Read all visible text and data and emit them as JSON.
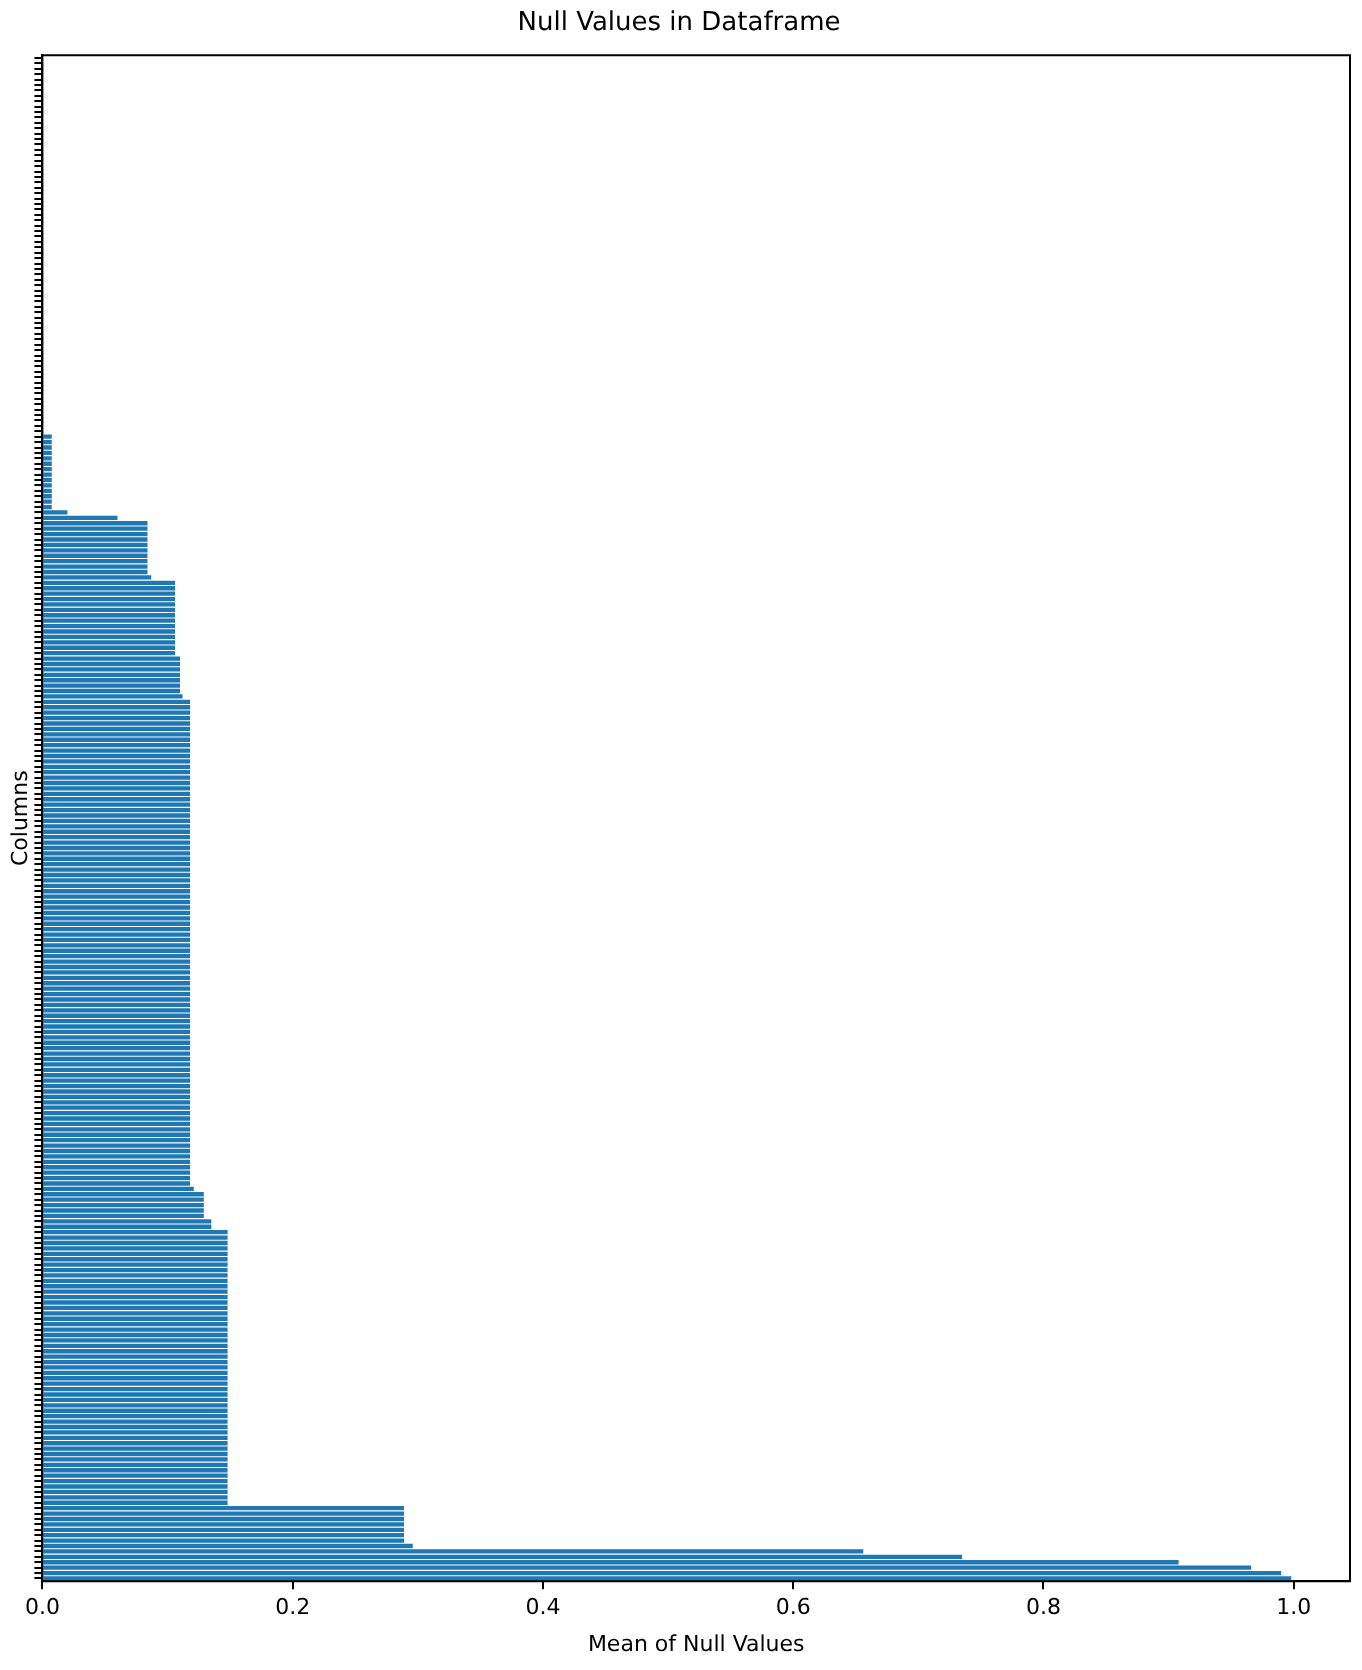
{
  "chart_data": {
    "type": "bar",
    "orientation": "horizontal",
    "title": "Null Values in Dataframe",
    "xlabel": "Mean of Null Values",
    "ylabel": "Columns",
    "categories": [
      null,
      null,
      null,
      null,
      null,
      null,
      null,
      null,
      null,
      null,
      null,
      null,
      null,
      null,
      null,
      null,
      null,
      null,
      null,
      null,
      null,
      null,
      null,
      null,
      null,
      null,
      null,
      null,
      null,
      null,
      null,
      null,
      null,
      null,
      null,
      null,
      null,
      null,
      null,
      null,
      null,
      null,
      null,
      null,
      null,
      null,
      null,
      null,
      null,
      null,
      null,
      null,
      null,
      null,
      null,
      null,
      null,
      null,
      null,
      null,
      null,
      null,
      null,
      null,
      null,
      null,
      null,
      null,
      null,
      null,
      null,
      null,
      null,
      null,
      null,
      null,
      null,
      null,
      null,
      null,
      null,
      null,
      null,
      null,
      null,
      null,
      null,
      null,
      null,
      null,
      null,
      null,
      null,
      null,
      null,
      null,
      null,
      null,
      null,
      null,
      null,
      null,
      null,
      null,
      null,
      null,
      null,
      null,
      null,
      null,
      null,
      null,
      null,
      null,
      null,
      null,
      null,
      null,
      null,
      null,
      null,
      null,
      null,
      null,
      null,
      null,
      null,
      null,
      null,
      null,
      null,
      null,
      null,
      null,
      null,
      null,
      null,
      null,
      null,
      null,
      null,
      null,
      null,
      null,
      null,
      null,
      null,
      null,
      null,
      null,
      null,
      null,
      null,
      null,
      null,
      null,
      null,
      null,
      null,
      null,
      null,
      null,
      null,
      null,
      null,
      null,
      null,
      null,
      null,
      null,
      null,
      null,
      null,
      null,
      null,
      null,
      null,
      null,
      null,
      null,
      null,
      null,
      null,
      null,
      null,
      null,
      null,
      null,
      null,
      null,
      null,
      null,
      null,
      null,
      null,
      null,
      null,
      null,
      null,
      null,
      null,
      null,
      null,
      null,
      null,
      null,
      null,
      null,
      null,
      null,
      null,
      null,
      null,
      null,
      null,
      null,
      null,
      null,
      null,
      null,
      null,
      null,
      null,
      null,
      null,
      null,
      null,
      null,
      null,
      null,
      null,
      null,
      null,
      null,
      null,
      null,
      null,
      null,
      null,
      null,
      null,
      null,
      null,
      null,
      null,
      null,
      null,
      null,
      null,
      null,
      null,
      null,
      null,
      null,
      null,
      null,
      null,
      null,
      null,
      null,
      null,
      null,
      null,
      null,
      null,
      null,
      null,
      null,
      null,
      null,
      null,
      null,
      null,
      null,
      null,
      null,
      null,
      null,
      null,
      null,
      null,
      null
    ],
    "values": [
      0,
      0,
      0,
      0,
      0,
      0,
      0,
      0,
      0,
      0,
      0,
      0,
      0,
      0,
      0,
      0,
      0,
      0,
      0,
      0,
      0,
      0,
      0,
      0,
      0,
      0,
      0,
      0,
      0,
      0,
      0,
      0,
      0,
      0,
      0,
      0,
      0,
      0,
      0,
      0,
      0,
      0,
      0,
      0,
      0,
      0,
      0,
      0,
      0,
      0,
      0,
      0,
      0,
      0,
      0,
      0,
      0,
      0,
      0,
      0,
      0,
      0,
      0,
      0,
      0,
      0,
      0,
      0,
      0,
      0,
      0.0075,
      0.0075,
      0.0075,
      0.0075,
      0.0075,
      0.0075,
      0.0075,
      0.0075,
      0.0075,
      0.0075,
      0.0075,
      0.0075,
      0.0075,
      0.0075,
      0.02,
      0.06,
      0.084,
      0.084,
      0.084,
      0.084,
      0.084,
      0.084,
      0.084,
      0.084,
      0.084,
      0.084,
      0.087,
      0.106,
      0.106,
      0.106,
      0.106,
      0.106,
      0.106,
      0.106,
      0.106,
      0.106,
      0.106,
      0.106,
      0.106,
      0.106,
      0.106,
      0.11,
      0.11,
      0.11,
      0.11,
      0.11,
      0.11,
      0.11,
      0.112,
      0.118,
      0.118,
      0.118,
      0.118,
      0.118,
      0.118,
      0.118,
      0.118,
      0.118,
      0.118,
      0.118,
      0.118,
      0.118,
      0.118,
      0.118,
      0.118,
      0.118,
      0.118,
      0.118,
      0.118,
      0.118,
      0.118,
      0.118,
      0.118,
      0.118,
      0.118,
      0.118,
      0.118,
      0.118,
      0.118,
      0.118,
      0.118,
      0.118,
      0.118,
      0.118,
      0.118,
      0.118,
      0.118,
      0.118,
      0.118,
      0.118,
      0.118,
      0.118,
      0.118,
      0.118,
      0.118,
      0.118,
      0.118,
      0.118,
      0.118,
      0.118,
      0.118,
      0.118,
      0.118,
      0.118,
      0.118,
      0.118,
      0.118,
      0.118,
      0.118,
      0.118,
      0.118,
      0.118,
      0.118,
      0.118,
      0.118,
      0.118,
      0.118,
      0.118,
      0.118,
      0.118,
      0.118,
      0.118,
      0.118,
      0.118,
      0.118,
      0.118,
      0.118,
      0.118,
      0.118,
      0.118,
      0.118,
      0.118,
      0.118,
      0.118,
      0.118,
      0.118,
      0.118,
      0.118,
      0.118,
      0.121,
      0.129,
      0.129,
      0.129,
      0.129,
      0.129,
      0.135,
      0.135,
      0.148,
      0.148,
      0.148,
      0.148,
      0.148,
      0.148,
      0.148,
      0.148,
      0.148,
      0.148,
      0.148,
      0.148,
      0.148,
      0.148,
      0.148,
      0.148,
      0.148,
      0.148,
      0.148,
      0.148,
      0.148,
      0.148,
      0.148,
      0.148,
      0.148,
      0.148,
      0.148,
      0.148,
      0.148,
      0.148,
      0.148,
      0.148,
      0.148,
      0.148,
      0.148,
      0.148,
      0.148,
      0.148,
      0.148,
      0.148,
      0.148,
      0.148,
      0.148,
      0.148,
      0.148,
      0.148,
      0.148,
      0.148,
      0.148,
      0.148,
      0.148,
      0.289,
      0.289,
      0.289,
      0.289,
      0.289,
      0.289,
      0.289,
      0.296,
      0.656,
      0.735,
      0.908,
      0.966,
      0.99,
      0.998
    ],
    "color": "#1f77b4",
    "xlim": [
      0,
      1.045
    ],
    "xticks": [
      {
        "value": 0,
        "label": "0.0"
      },
      0.2,
      0.4,
      0.6,
      0.8,
      {
        "value": 1,
        "label": "1.0"
      }
    ],
    "grid": false,
    "legend": false
  }
}
